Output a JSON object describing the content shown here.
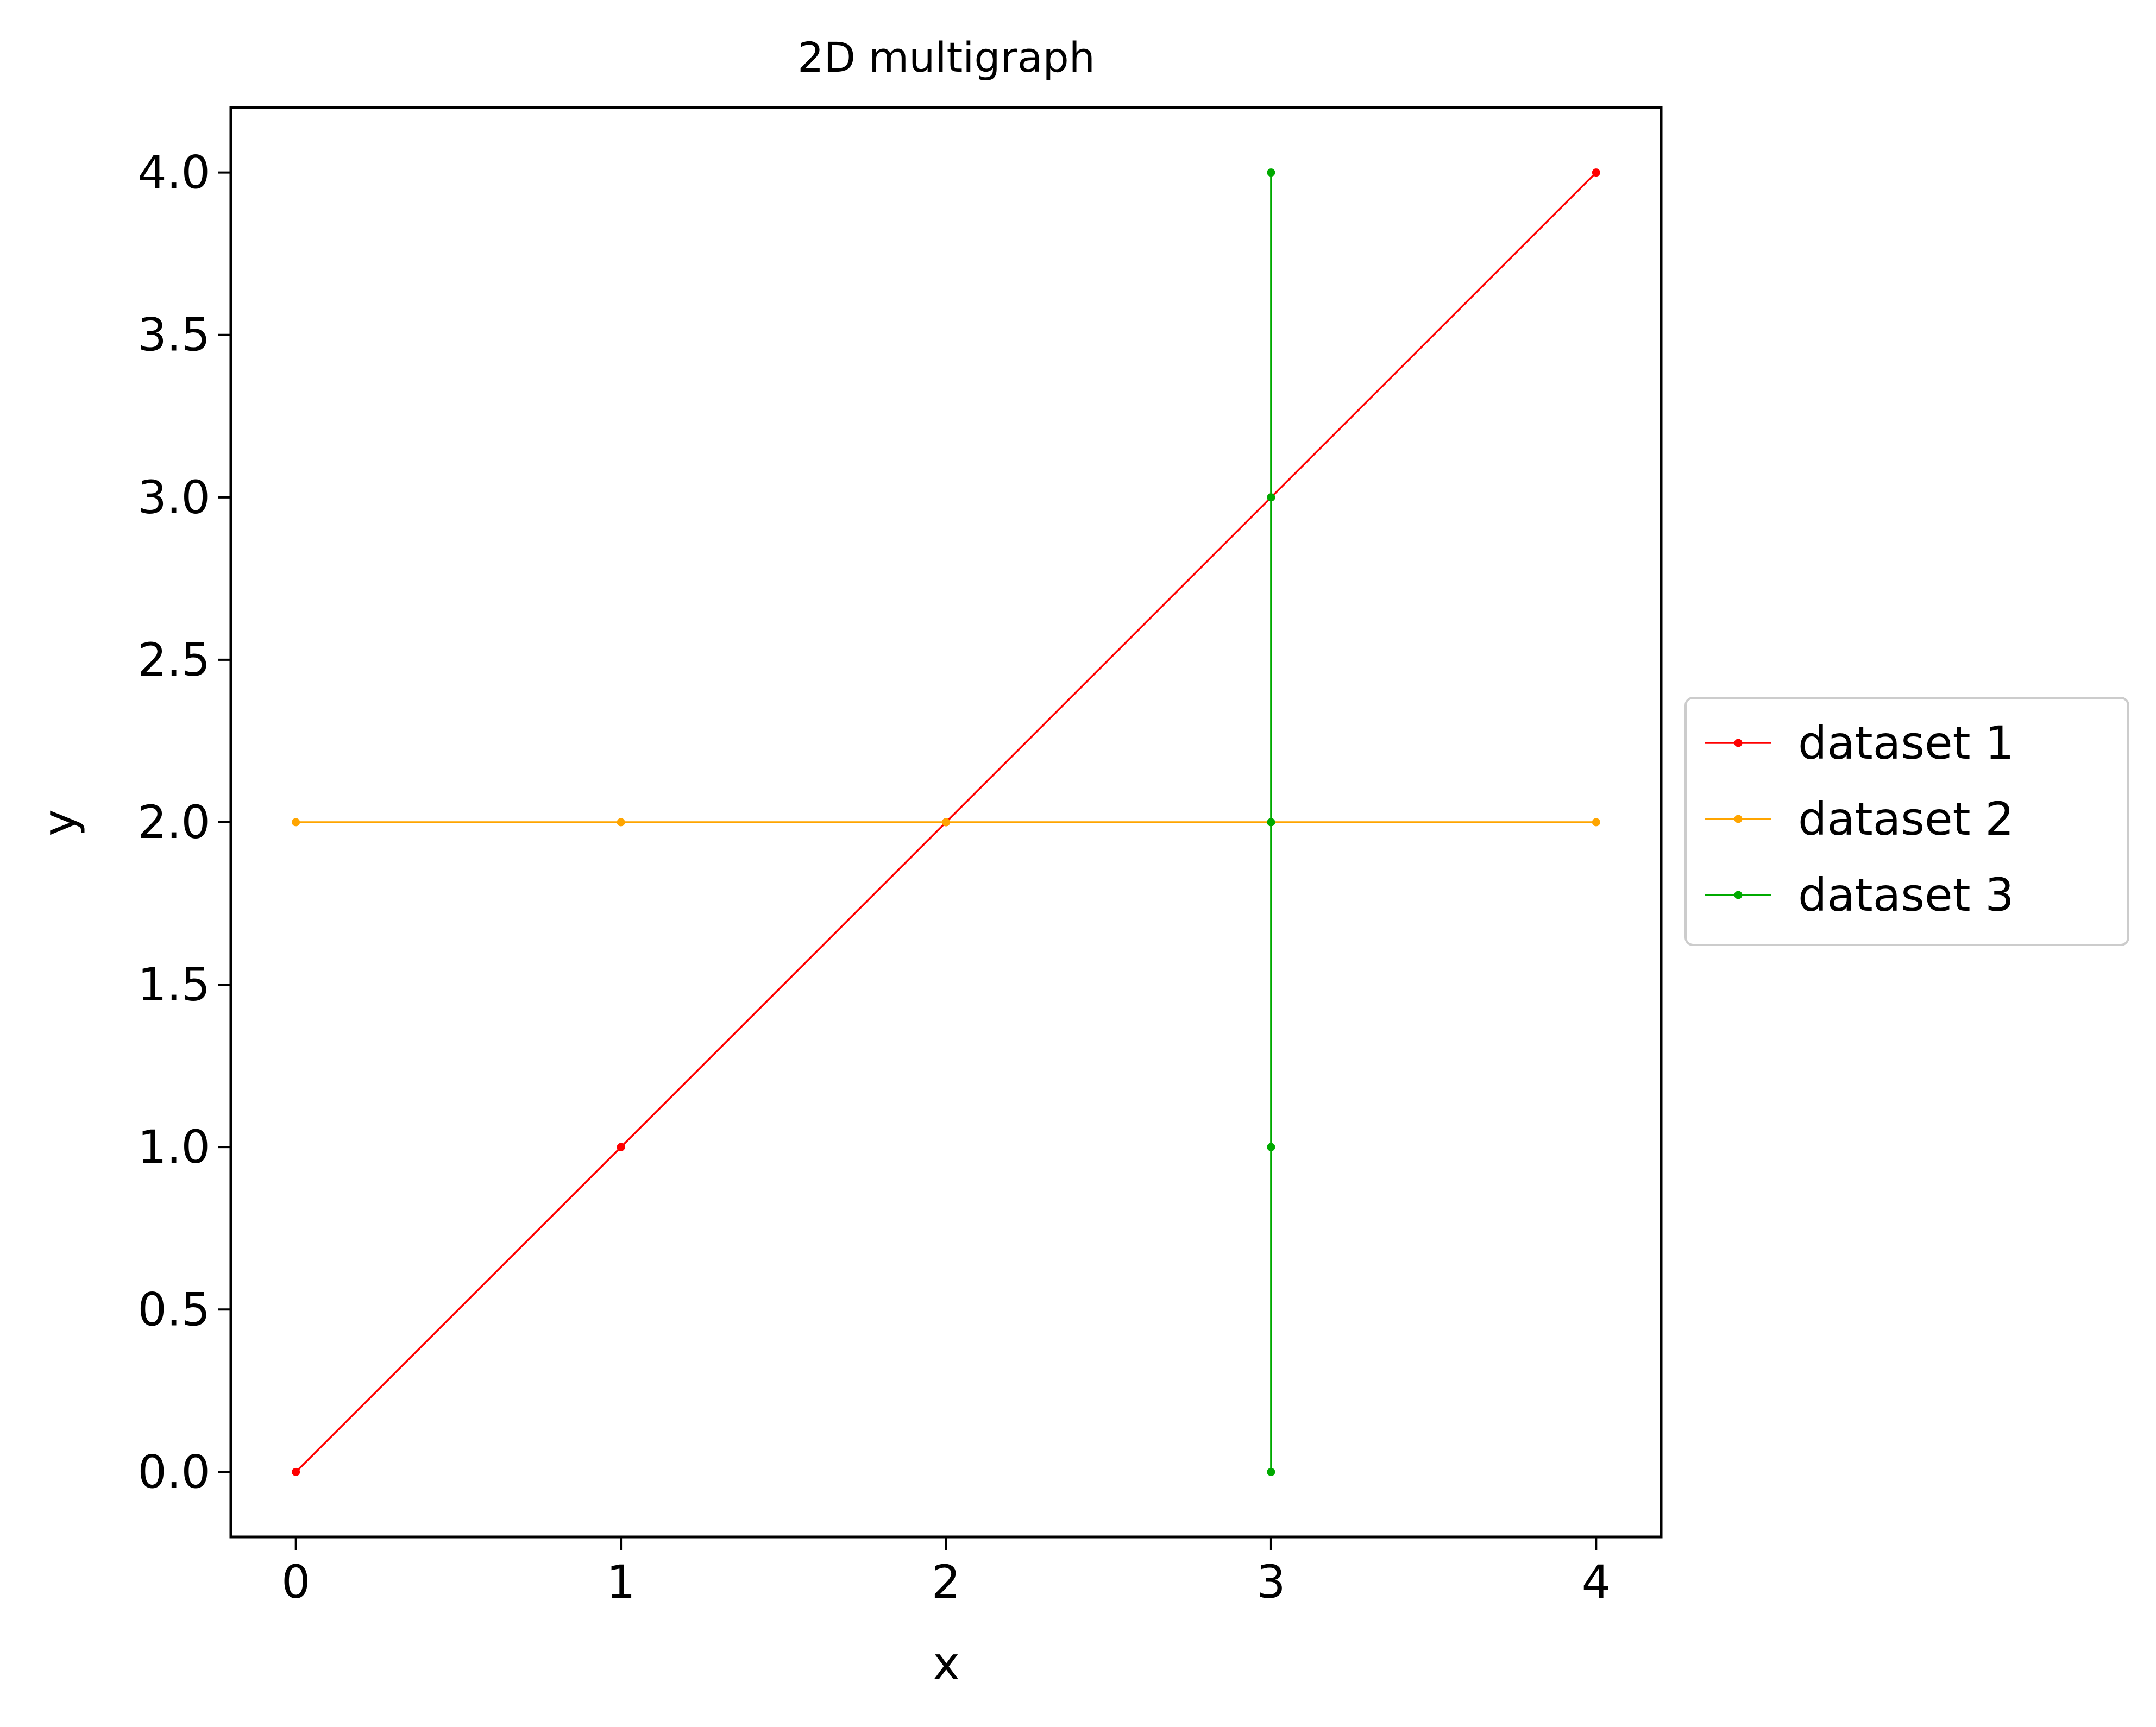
{
  "chart_data": {
    "type": "line",
    "title": "2D multigraph",
    "xlabel": "x",
    "ylabel": "y",
    "xlim": [
      -0.2,
      4.2
    ],
    "ylim": [
      -0.2,
      4.2
    ],
    "xticks": [
      0,
      1,
      2,
      3,
      4
    ],
    "xtick_labels": [
      "0",
      "1",
      "2",
      "3",
      "4"
    ],
    "yticks": [
      0,
      0.5,
      1,
      1.5,
      2,
      2.5,
      3,
      3.5,
      4
    ],
    "ytick_labels": [
      "0.0",
      "0.5",
      "1.0",
      "1.5",
      "2.0",
      "2.5",
      "3.0",
      "3.5",
      "4.0"
    ],
    "grid": false,
    "legend": "center-left outside right",
    "series": [
      {
        "name": "dataset 1",
        "color": "#ff0000",
        "x": [
          0,
          1,
          2,
          3,
          4
        ],
        "y": [
          0,
          1,
          2,
          3,
          4
        ]
      },
      {
        "name": "dataset 2",
        "color": "#ffa500",
        "x": [
          0,
          1,
          2,
          3,
          4
        ],
        "y": [
          2,
          2,
          2,
          2,
          2
        ]
      },
      {
        "name": "dataset 3",
        "color": "#00aa00",
        "x": [
          3,
          3,
          3,
          3,
          3
        ],
        "y": [
          0,
          1,
          2,
          3,
          4
        ]
      }
    ]
  }
}
